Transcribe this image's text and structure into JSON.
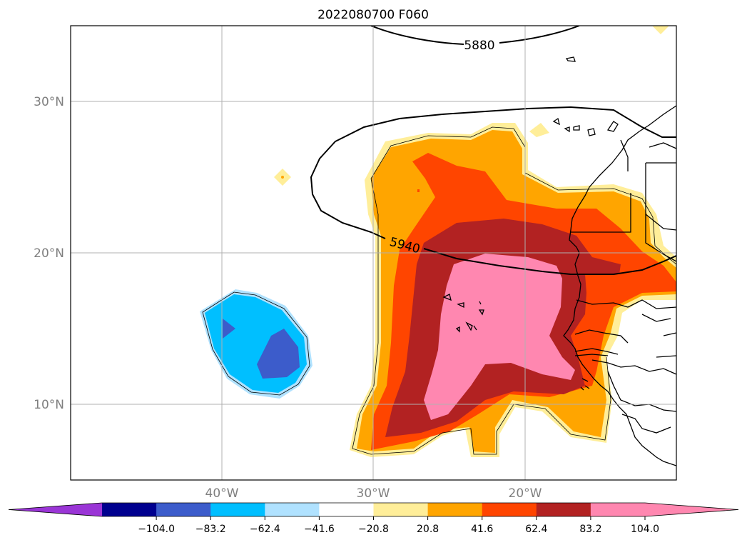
{
  "title": "2022080700 F060",
  "map": {
    "lat_labels": [
      "30°N",
      "20°N",
      "10°N"
    ],
    "lon_labels": [
      "40°W",
      "30°W",
      "20°W"
    ],
    "contour_labels": [
      "5880",
      "5940"
    ]
  },
  "colorbar": {
    "tick_labels": [
      "−104.0",
      "−83.2",
      "−62.4",
      "−41.6",
      "−20.8",
      "20.8",
      "41.6",
      "62.4",
      "83.2",
      "104.0"
    ],
    "colors": {
      "under": "#9a35d6",
      "bins": [
        "#00008f",
        "#3c5ccb",
        "#00bfff",
        "#b0e2ff",
        "#ffffff",
        "#ffee99",
        "#ffa500",
        "#ff4500",
        "#b22222",
        "#ff87b0"
      ],
      "over": "#ff87b0"
    }
  },
  "colors": {
    "land_outline": "#000000",
    "grid": "#b0b0b0"
  }
}
